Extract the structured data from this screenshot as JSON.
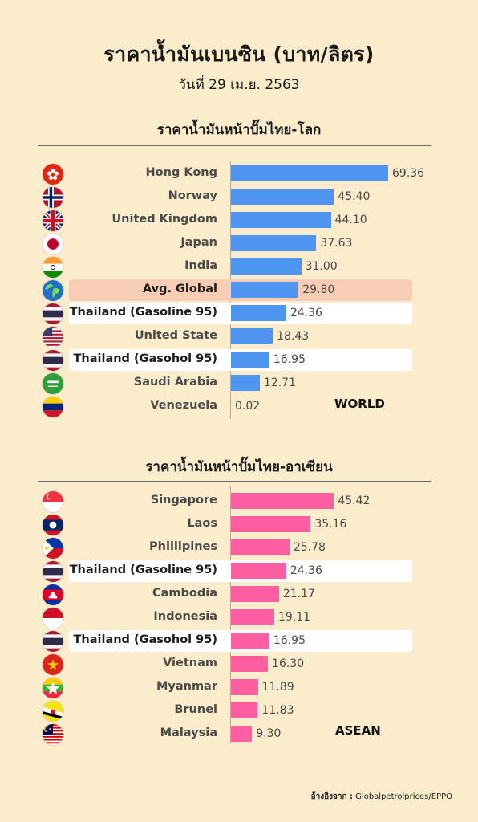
{
  "header": {
    "title": "ราคาน้ำมันเบนซิน (บาท/ลิตร)",
    "subtitle": "วันที่ 29 เม.ย. 2563"
  },
  "colors": {
    "world_bar": "#4f94f0",
    "asean_bar": "#ff5fa0",
    "background": "#fbeccb",
    "highlight_white": "#ffffff",
    "highlight_peach": "#f9cdb5"
  },
  "world": {
    "section_title": "ราคาน้ำมันหน้าปั๊มไทย-โลก",
    "tag": "WORLD"
  },
  "asean": {
    "section_title": "ราคาน้ำมันหน้าปั๊มไทย-อาเซียน",
    "tag": "ASEAN"
  },
  "source": {
    "label": "อ้างอิงจาก :",
    "text": "Globalpetrolprices/EPPO"
  },
  "chart_data": [
    {
      "type": "bar",
      "orientation": "horizontal",
      "title": "ราคาน้ำมันหน้าปั๊มไทย-โลก",
      "categories": [
        "Hong Kong",
        "Norway",
        "United Kingdom",
        "Japan",
        "India",
        "Avg. Global",
        "Thailand (Gasoline 95)",
        "United State",
        "Thailand (Gasohol 95)",
        "Saudi Arabia",
        "Venezuela"
      ],
      "values": [
        69.36,
        45.4,
        44.1,
        37.63,
        31.0,
        29.8,
        24.36,
        18.43,
        16.95,
        12.71,
        0.02
      ],
      "value_labels": [
        "69.36",
        "45.40",
        "44.10",
        "37.63",
        "31.00",
        "29.80",
        "24.36",
        "18.43",
        "16.95",
        "12.71",
        "0.02"
      ],
      "highlights": [
        "none",
        "none",
        "none",
        "none",
        "none",
        "peach",
        "white",
        "none",
        "white",
        "none",
        "none"
      ],
      "flags": [
        "hong-kong-flag-icon",
        "norway-flag-icon",
        "united-kingdom-flag-icon",
        "japan-flag-icon",
        "india-flag-icon",
        "globe-icon",
        "thailand-flag-icon",
        "united-states-flag-icon",
        "thailand-flag-icon",
        "saudi-arabia-flag-icon",
        "venezuela-flag-icon"
      ],
      "xlim": [
        0,
        70
      ],
      "legend": "none",
      "grid": false
    },
    {
      "type": "bar",
      "orientation": "horizontal",
      "title": "ราคาน้ำมันหน้าปั๊มไทย-อาเซียน",
      "categories": [
        "Singapore",
        "Laos",
        "Phillipines",
        "Thailand (Gasoline 95)",
        "Cambodia",
        "Indonesia",
        "Thailand (Gasohol 95)",
        "Vietnam",
        "Myanmar",
        "Brunei",
        "Malaysia"
      ],
      "values": [
        45.42,
        35.16,
        25.78,
        24.36,
        21.17,
        19.11,
        16.95,
        16.3,
        11.89,
        11.83,
        9.3
      ],
      "value_labels": [
        "45.42",
        "35.16",
        "25.78",
        "24.36",
        "21.17",
        "19.11",
        "16.95",
        "16.30",
        "11.89",
        "11.83",
        "9.30"
      ],
      "highlights": [
        "none",
        "none",
        "none",
        "white",
        "none",
        "none",
        "white",
        "none",
        "none",
        "none",
        "none"
      ],
      "flags": [
        "singapore-flag-icon",
        "laos-flag-icon",
        "philippines-flag-icon",
        "thailand-flag-icon",
        "cambodia-flag-icon",
        "indonesia-flag-icon",
        "thailand-flag-icon",
        "vietnam-flag-icon",
        "myanmar-flag-icon",
        "brunei-flag-icon",
        "malaysia-flag-icon"
      ],
      "xlim": [
        0,
        70
      ],
      "legend": "none",
      "grid": false
    }
  ]
}
